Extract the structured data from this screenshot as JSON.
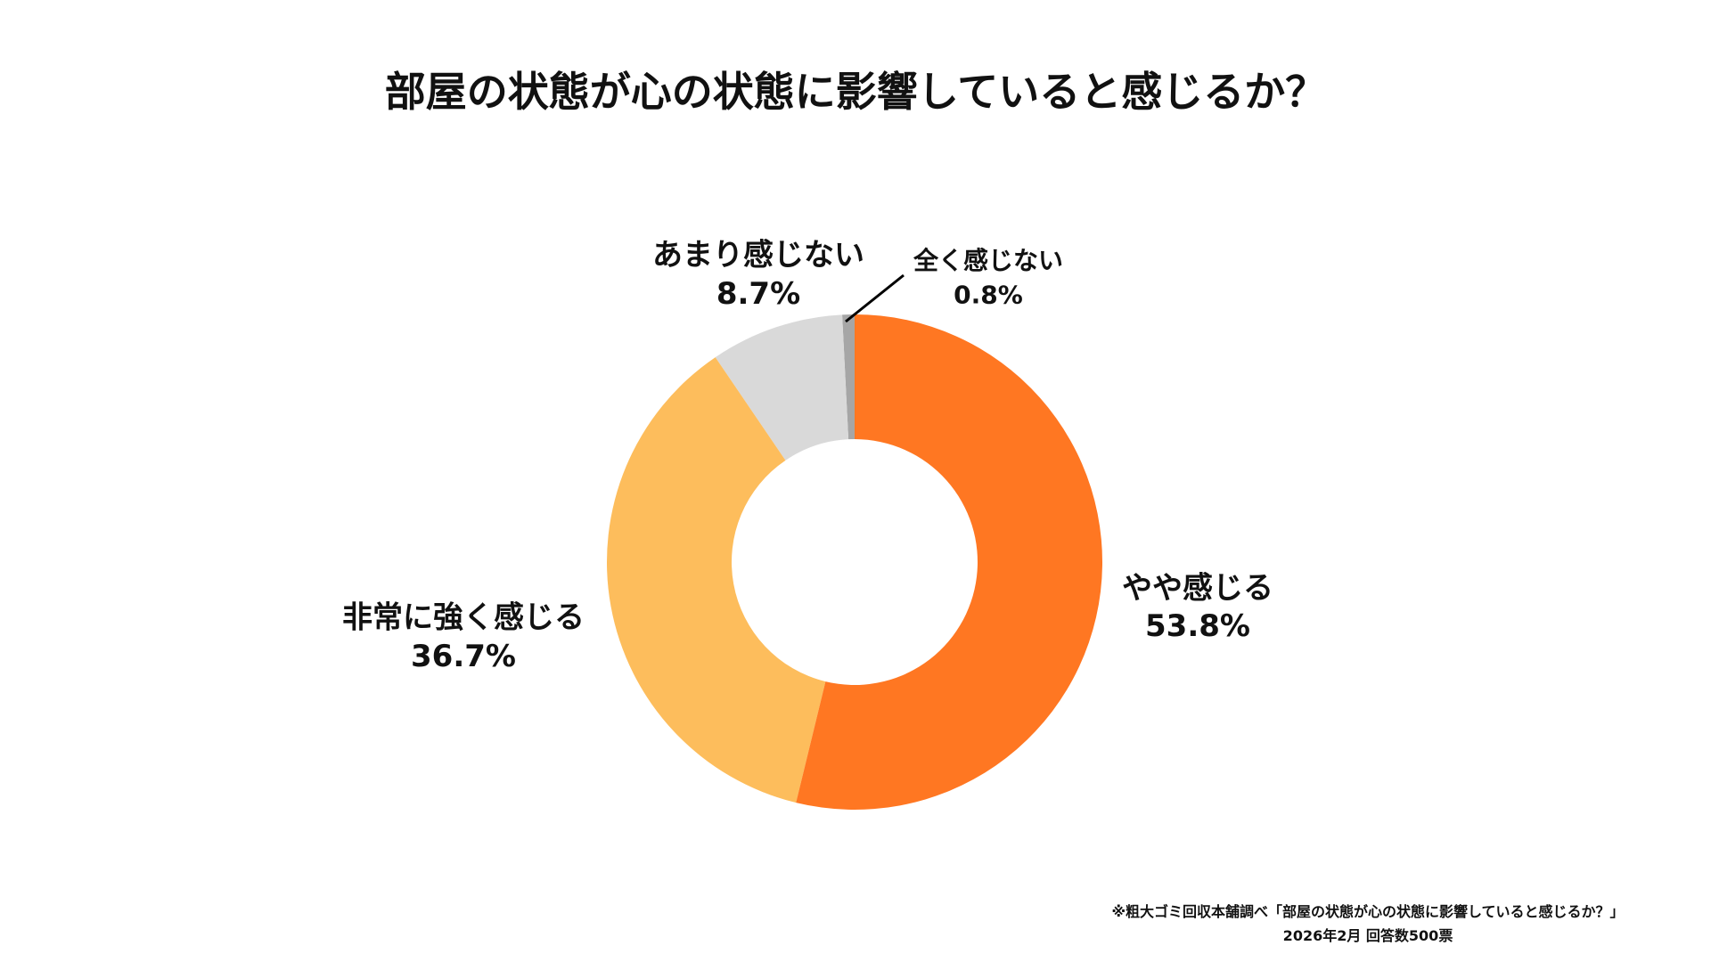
{
  "chart_data": {
    "type": "pie",
    "style": "donut",
    "title": "部屋の状態が心の状態に影響していると感じるか？",
    "slices": [
      {
        "label": "やや感じる",
        "value": 53.8,
        "value_label": "53.8%",
        "color": "#FF7722"
      },
      {
        "label": "非常に強く感じる",
        "value": 36.7,
        "value_label": "36.7%",
        "color": "#FDBD5C"
      },
      {
        "label": "あまり感じない",
        "value": 8.7,
        "value_label": "8.7%",
        "color": "#D9D9D9"
      },
      {
        "label": "全く感じない",
        "value": 0.8,
        "value_label": "0.8%",
        "color": "#A6A6A6"
      }
    ],
    "start_angle": "top, clockwise",
    "legend": "none"
  },
  "footer": {
    "line1": "※粗大ゴミ回収本舗調べ「部屋の状態が心の状態に影響していると感じるか？」",
    "line2": "2026年2月 回答数500票"
  }
}
